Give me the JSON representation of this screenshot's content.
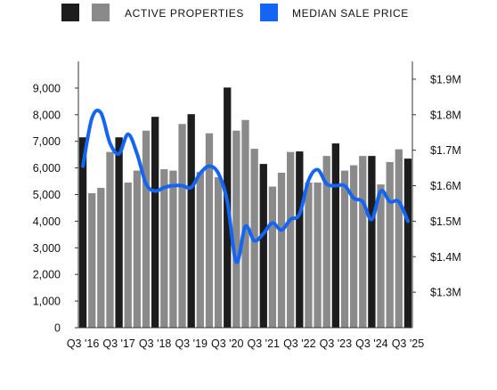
{
  "chart_data": {
    "type": "bar-line-combo",
    "legend": {
      "placement": "top-left",
      "bars_label": "ACTIVE PROPERTIES",
      "line_label": "MEDIAN SALE PRICE"
    },
    "colors": {
      "bar_dark": "#1d1d1d",
      "bar_gray": "#8a8a8a",
      "line": "#1565f5",
      "axis": "#333333"
    },
    "grid": false,
    "left_axis": {
      "ylim": [
        0,
        10000
      ],
      "ticks": [
        0,
        1000,
        2000,
        3000,
        4000,
        5000,
        6000,
        7000,
        8000,
        9000
      ],
      "tick_labels": [
        "0",
        "1,000",
        "2,000",
        "3,000",
        "4,000",
        "5,000",
        "6,000",
        "7,000",
        "8,000",
        "9,000"
      ]
    },
    "right_axis": {
      "ylim": [
        1.2,
        1.95
      ],
      "ticks": [
        1.3,
        1.4,
        1.5,
        1.6,
        1.7,
        1.8,
        1.9
      ],
      "tick_labels": [
        "$1.3M",
        "$1.4M",
        "$1.5M",
        "$1.6M",
        "$1.7M",
        "$1.8M",
        "$1.9M"
      ]
    },
    "x_tick_labels": [
      "Q3 '16",
      "Q3 '17",
      "Q3 '18",
      "Q3 '19",
      "Q3 '20",
      "Q3 '21",
      "Q3 '22",
      "Q3 '23",
      "Q3 '24",
      "Q3 '25"
    ],
    "x_tick_indices": [
      0,
      4,
      8,
      12,
      16,
      20,
      24,
      28,
      32,
      36
    ],
    "series": [
      {
        "name": "ACTIVE PROPERTIES",
        "kind": "bar",
        "values": [
          7150,
          5050,
          5250,
          6600,
          7150,
          5450,
          5900,
          7400,
          7920,
          5950,
          5900,
          7650,
          8020,
          5850,
          7300,
          5650,
          9020,
          7400,
          7800,
          6720,
          6150,
          5300,
          5820,
          6600,
          6620,
          5450,
          5450,
          6450,
          6920,
          5900,
          6100,
          6450,
          6450,
          5380,
          6220,
          6700,
          6350
        ],
        "dark_indices": [
          0,
          4,
          8,
          12,
          16,
          20,
          24,
          28,
          32,
          36
        ]
      },
      {
        "name": "MEDIAN SALE PRICE",
        "kind": "line",
        "values": [
          1.655,
          1.79,
          1.805,
          1.72,
          1.69,
          1.745,
          1.69,
          1.605,
          1.585,
          1.595,
          1.6,
          1.6,
          1.595,
          1.635,
          1.655,
          1.635,
          1.555,
          1.385,
          1.485,
          1.445,
          1.465,
          1.495,
          1.475,
          1.505,
          1.52,
          1.615,
          1.645,
          1.605,
          1.6,
          1.6,
          1.565,
          1.555,
          1.505,
          1.585,
          1.555,
          1.555,
          1.5
        ]
      }
    ]
  }
}
